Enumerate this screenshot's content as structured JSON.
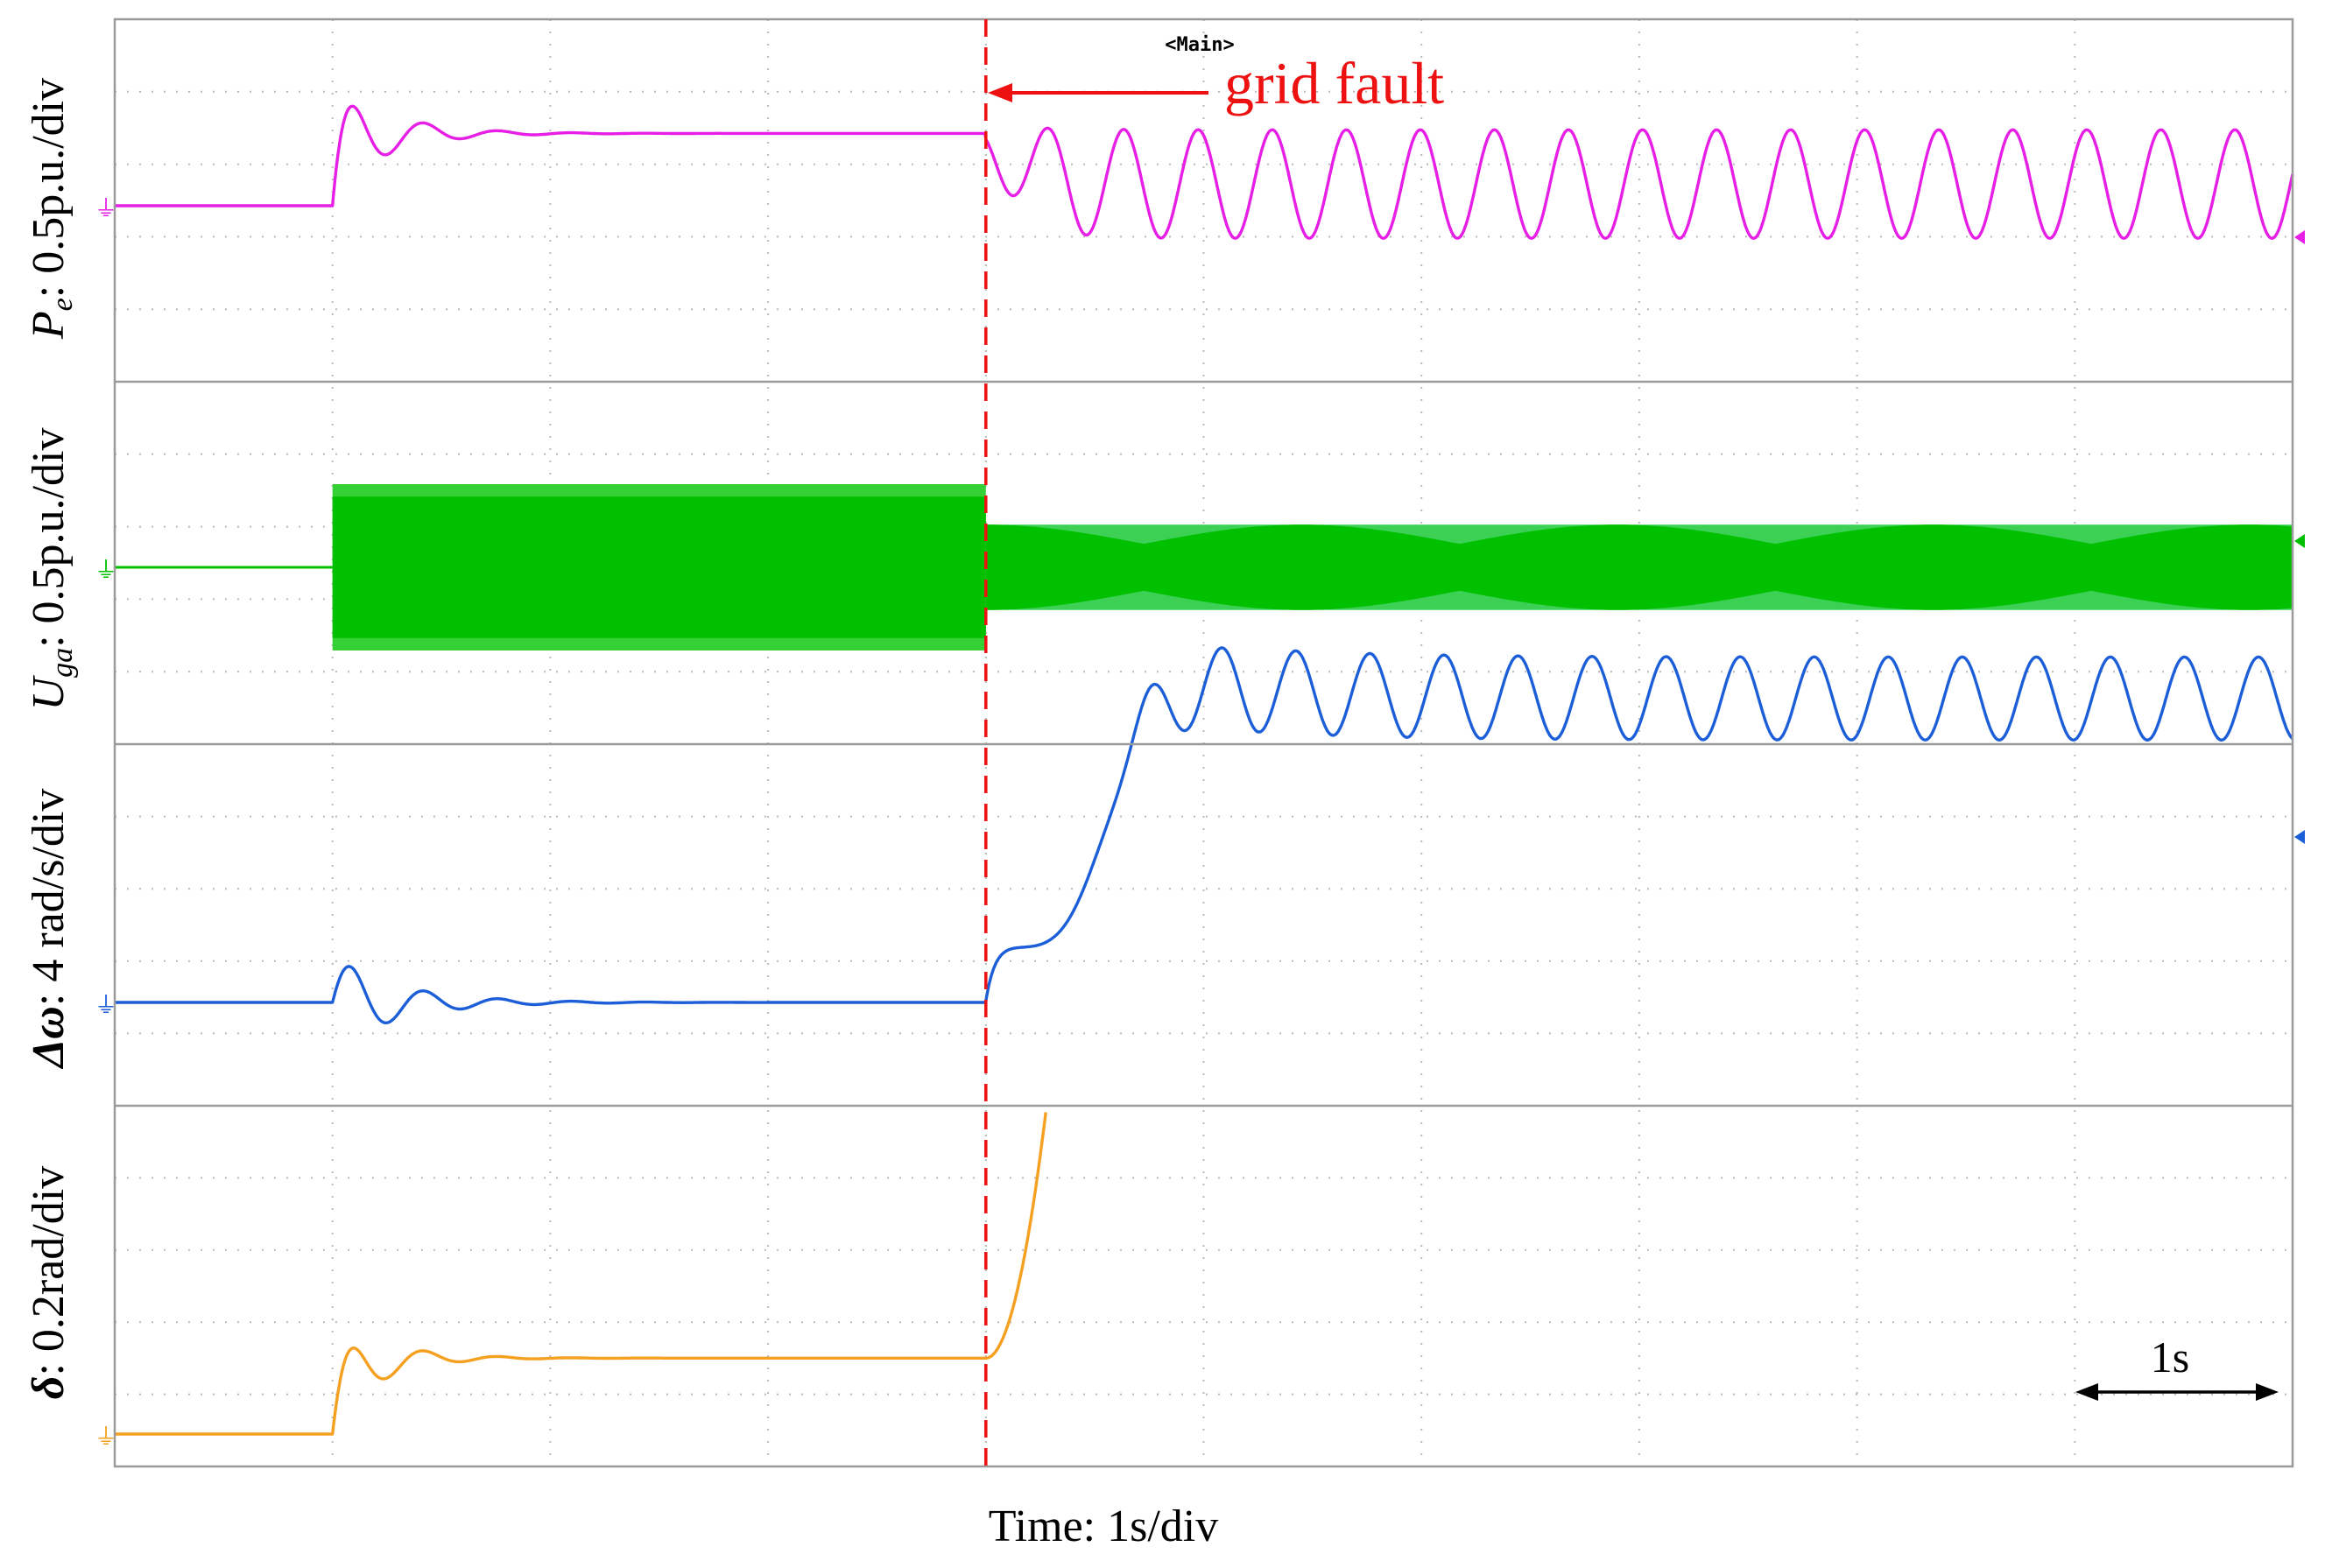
{
  "chart_data": {
    "type": "line",
    "title": "",
    "scope_header": "<Main>",
    "xlabel": "Time: 1s/div",
    "x_unit": "s",
    "x_range": [
      0,
      10
    ],
    "fault_time": 4.0,
    "annotation": {
      "text": "grid fault",
      "target": "fault line"
    },
    "time_scale_marker": {
      "label": "1s",
      "span_s": 1
    },
    "grid": true,
    "channels": [
      {
        "id": "pe",
        "label_var": "P",
        "label_sub": "e",
        "label_rest": ": 0.5p.u./div",
        "color": "#e61ee6",
        "pre_fault_step_time": 1.0,
        "pre_level_div": 0.0,
        "post_step_level_div": 1.0,
        "post_fault_osc_amp_div": 0.75,
        "post_fault_osc_period_s": 0.34
      },
      {
        "id": "uga",
        "label_var": "U",
        "label_sub": "ga",
        "label_rest": ": 0.5p.u./div",
        "color": "#00c000",
        "envelope_pre_fault_div": 1.0,
        "envelope_post_fault_div": 0.5,
        "beat_period_s": 1.45
      },
      {
        "id": "dw",
        "label_var": "Δω",
        "label_sub": "",
        "label_rest": ": 4 rad/s/div",
        "color": "#1b5ed8",
        "post_fault_mean_div": 2.05,
        "post_fault_osc_amp_div": 0.28,
        "post_fault_osc_period_s": 0.34
      },
      {
        "id": "delta",
        "label_var": "δ",
        "label_sub": "",
        "label_rest": ": 0.2rad/div",
        "color": "#f5a020",
        "pre_level_div": 0.0,
        "post_step_level_div": 1.05,
        "runaway_after_fault": true
      }
    ]
  }
}
